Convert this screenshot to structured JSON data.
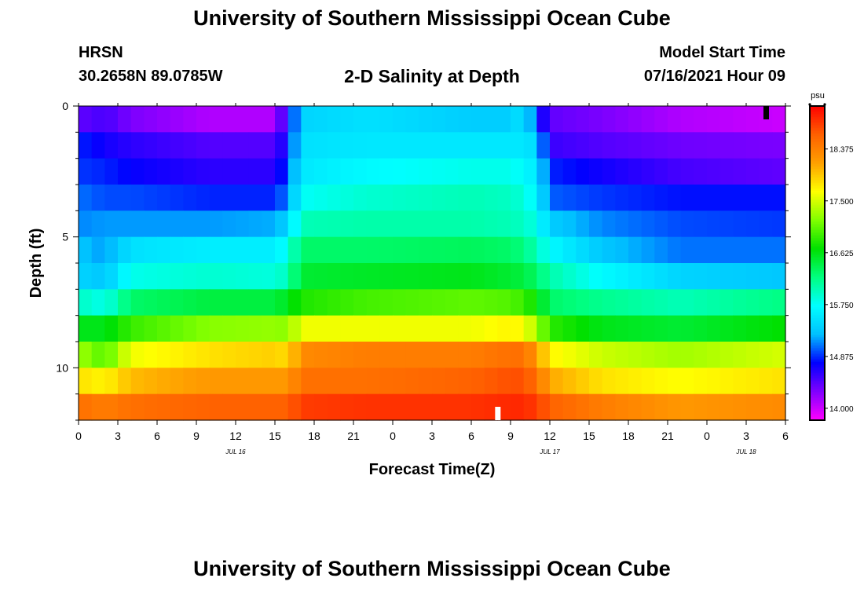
{
  "header": {
    "title": "University of Southern Mississippi Ocean Cube",
    "station": "HRSN",
    "coords": "30.2658N  89.0785W",
    "subtitle": "2-D Salinity at Depth",
    "model_label": "Model Start Time",
    "model_time": "07/16/2021 Hour 09"
  },
  "footer": {
    "title": "University of Southern Mississippi Ocean Cube"
  },
  "colors": {
    "scale": [
      "#ff00ff",
      "#8000ff",
      "#0000ff",
      "#00c0ff",
      "#00ffff",
      "#00ff80",
      "#00e000",
      "#80ff00",
      "#ffff00",
      "#ffa000",
      "#ff6000",
      "#ff0000"
    ]
  },
  "chart_data": {
    "type": "heatmap",
    "title": "2-D Salinity at Depth",
    "xlabel": "Forecast Time(Z)",
    "ylabel": "Depth (ft)",
    "x_ticks": [
      "0",
      "3",
      "6",
      "9",
      "12",
      "15",
      "18",
      "21",
      "0",
      "3",
      "6",
      "9",
      "12",
      "15",
      "18",
      "21",
      "0",
      "3",
      "6"
    ],
    "x_range_hours": [
      0,
      54
    ],
    "date_labels": [
      {
        "text": "JUL 16",
        "hour": 12
      },
      {
        "text": "JUL 17",
        "hour": 36
      },
      {
        "text": "JUL 18",
        "hour": 51
      }
    ],
    "y_ticks": [
      "0",
      "5",
      "10"
    ],
    "y_tick_values": [
      0,
      5,
      10
    ],
    "ylim": [
      0,
      12
    ],
    "colorbar": {
      "unit": "psu",
      "ticks": [
        "18.375",
        "17.500",
        "16.625",
        "15.750",
        "14.875",
        "14.000"
      ],
      "tick_values": [
        18.375,
        17.5,
        16.625,
        15.75,
        14.875,
        14.0
      ],
      "vmin": 13.8,
      "vmax": 19.1
    },
    "markers": [
      {
        "hour": 52.5,
        "color": "#000000",
        "position": "top"
      },
      {
        "hour": 32,
        "color": "#ffffff",
        "position": "bottom"
      }
    ],
    "layer_depths_ft": [
      0.5,
      1.5,
      2.5,
      3.5,
      4.5,
      5.5,
      6.5,
      7.5,
      8.5,
      9.5,
      10.5,
      11.5
    ],
    "keyframes_hour": [
      0,
      2,
      4,
      10,
      15,
      16,
      17,
      22,
      30,
      33,
      34,
      35,
      36,
      40,
      46,
      54
    ],
    "salinity_psu": [
      [
        14.4,
        14.5,
        14.3,
        14.1,
        14.1,
        14.7,
        15.4,
        15.5,
        15.35,
        15.35,
        15.55,
        14.9,
        14.4,
        14.3,
        14.1,
        14.0
      ],
      [
        14.85,
        14.7,
        14.6,
        14.45,
        14.45,
        14.8,
        15.5,
        15.55,
        15.55,
        15.55,
        15.55,
        15.45,
        14.55,
        14.45,
        14.35,
        14.3
      ],
      [
        14.9,
        14.85,
        14.75,
        14.6,
        14.6,
        14.95,
        15.55,
        15.7,
        15.8,
        15.8,
        15.7,
        15.55,
        14.85,
        14.7,
        14.5,
        14.4
      ],
      [
        15.05,
        14.95,
        14.95,
        14.85,
        14.85,
        15.1,
        15.75,
        15.9,
        16.0,
        15.95,
        15.85,
        15.65,
        15.0,
        14.9,
        14.8,
        14.8
      ],
      [
        15.1,
        15.15,
        15.15,
        15.15,
        15.2,
        15.4,
        16.0,
        16.05,
        16.05,
        16.0,
        15.95,
        15.8,
        15.35,
        15.1,
        14.95,
        14.9
      ],
      [
        15.3,
        15.15,
        15.5,
        15.6,
        15.6,
        15.8,
        16.3,
        16.3,
        16.35,
        16.3,
        16.2,
        16.0,
        15.7,
        15.3,
        15.05,
        15.05
      ],
      [
        15.4,
        15.3,
        15.8,
        15.9,
        15.85,
        16.0,
        16.5,
        16.55,
        16.6,
        16.5,
        16.45,
        16.3,
        16.05,
        15.7,
        15.4,
        15.3
      ],
      [
        15.95,
        15.8,
        16.3,
        16.45,
        16.45,
        16.6,
        16.8,
        16.95,
        17.05,
        17.0,
        16.9,
        16.7,
        16.3,
        16.15,
        16.0,
        16.2
      ],
      [
        16.6,
        16.6,
        16.9,
        17.2,
        17.25,
        17.2,
        17.6,
        17.6,
        17.6,
        17.7,
        17.65,
        17.3,
        16.85,
        16.6,
        16.5,
        16.7
      ],
      [
        17.3,
        17.0,
        17.6,
        17.8,
        17.9,
        17.8,
        18.3,
        18.4,
        18.4,
        18.5,
        18.5,
        18.2,
        17.7,
        17.45,
        17.3,
        17.5
      ],
      [
        17.8,
        17.7,
        18.0,
        18.2,
        18.2,
        18.2,
        18.5,
        18.5,
        18.6,
        18.7,
        18.7,
        18.5,
        18.1,
        17.8,
        17.65,
        17.8
      ],
      [
        18.5,
        18.4,
        18.5,
        18.6,
        18.6,
        18.6,
        18.8,
        18.85,
        18.85,
        18.9,
        18.9,
        18.8,
        18.6,
        18.4,
        18.2,
        18.3
      ]
    ]
  }
}
